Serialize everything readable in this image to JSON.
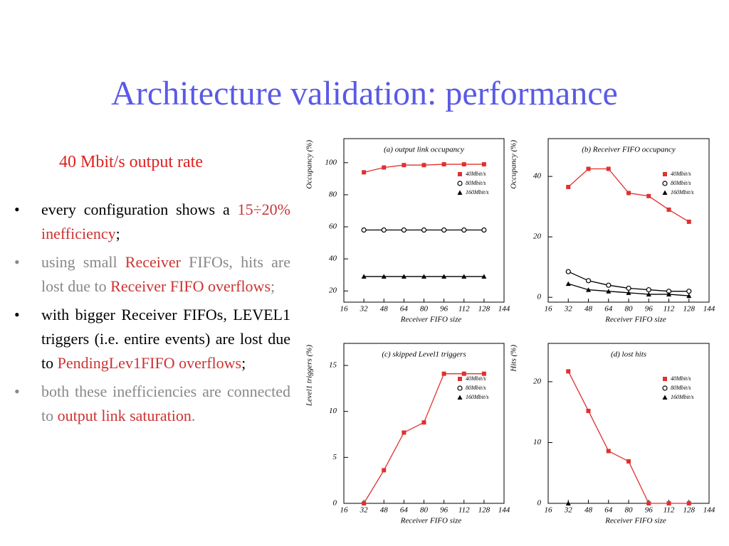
{
  "title": "Architecture validation: performance",
  "subtitle": "40 Mbit/s output rate",
  "highlight_color": "#cc3333",
  "bullets": [
    {
      "color": "#000000",
      "segments": [
        {
          "text": "every configuration shows a "
        },
        {
          "text": "15÷20% inefficiency",
          "highlight": true
        },
        {
          "text": ";"
        }
      ]
    },
    {
      "color": "#888888",
      "segments": [
        {
          "text": "using small "
        },
        {
          "text": "Receiver",
          "highlight": true
        },
        {
          "text": " FIFOs, hits are lost due to "
        },
        {
          "text": "Receiver FIFO overflows",
          "highlight": true
        },
        {
          "text": ";"
        }
      ]
    },
    {
      "color": "#000000",
      "segments": [
        {
          "text": "with bigger Receiver FIFOs, LEVEL1 triggers (i.e. entire events) are lost due to "
        },
        {
          "text": "PendingLev1FIFO overflows",
          "highlight": true
        },
        {
          "text": ";"
        }
      ]
    },
    {
      "color": "#888888",
      "segments": [
        {
          "text": "both these inefficiencies are connected to "
        },
        {
          "text": "output link saturation",
          "highlight": true
        },
        {
          "text": "."
        }
      ]
    }
  ],
  "chart_data": [
    {
      "type": "line",
      "title": "(a) output link occupancy",
      "x_label": "Receiver FIFO size",
      "y_label": "Occupancy (%)",
      "x": [
        32,
        48,
        64,
        80,
        96,
        112,
        128
      ],
      "xlim": [
        16,
        144
      ],
      "xticks": [
        16,
        32,
        48,
        64,
        80,
        96,
        112,
        128,
        144
      ],
      "ylim": [
        13,
        115
      ],
      "yticks": [
        20,
        40,
        60,
        80,
        100
      ],
      "legend": "upper right",
      "series": [
        {
          "name": "40Mbit/s",
          "color": "#e03030",
          "marker": "square",
          "values": [
            94,
            97,
            98.5,
            98.5,
            99,
            99,
            99
          ]
        },
        {
          "name": "80Mbit/s",
          "color": "#000000",
          "marker": "circle",
          "values": [
            58,
            58,
            58,
            58,
            58,
            58,
            58
          ]
        },
        {
          "name": "160Mbit/s",
          "color": "#000000",
          "marker": "triangle",
          "values": [
            29,
            29,
            29,
            29,
            29,
            29,
            29
          ]
        }
      ]
    },
    {
      "type": "line",
      "title": "(b) Receiver FIFO occupancy",
      "x_label": "Receiver FIFO size",
      "y_label": "Occupancy (%)",
      "x": [
        32,
        48,
        64,
        80,
        96,
        112,
        128
      ],
      "xlim": [
        16,
        144
      ],
      "xticks": [
        16,
        32,
        48,
        64,
        80,
        96,
        112,
        128,
        144
      ],
      "ylim": [
        -1.6,
        52.5
      ],
      "yticks": [
        0,
        20,
        40
      ],
      "legend": "upper right",
      "series": [
        {
          "name": "40Mbit/s",
          "color": "#e03030",
          "marker": "square",
          "values": [
            36.5,
            42.5,
            42.5,
            34.5,
            33.5,
            29,
            25
          ]
        },
        {
          "name": "80Mbit/s",
          "color": "#000000",
          "marker": "circle",
          "values": [
            8.5,
            5.5,
            4,
            3,
            2.5,
            2,
            2
          ]
        },
        {
          "name": "160Mbit/s",
          "color": "#000000",
          "marker": "triangle",
          "values": [
            4.5,
            2.5,
            2,
            1.5,
            1,
            1,
            0.5
          ]
        }
      ]
    },
    {
      "type": "line",
      "title": "(c) skipped Level1 triggers",
      "x_label": "Receiver FIFO size",
      "y_label": "Level1 triggers (%)",
      "x": [
        32,
        48,
        64,
        80,
        96,
        112,
        128
      ],
      "xlim": [
        16,
        144
      ],
      "xticks": [
        16,
        32,
        48,
        64,
        80,
        96,
        112,
        128,
        144
      ],
      "ylim": [
        0,
        17.4
      ],
      "yticks": [
        0,
        5,
        10,
        15
      ],
      "legend": "upper right",
      "series": [
        {
          "name": "40Mbit/s",
          "color": "#e03030",
          "marker": "square",
          "values": [
            0,
            3.6,
            7.7,
            8.8,
            14.1,
            14.1,
            14.1
          ]
        },
        {
          "name": "80Mbit/s",
          "color": "#000000",
          "marker": "circle",
          "values": [
            null,
            null,
            null,
            null,
            null,
            null,
            null
          ]
        },
        {
          "name": "160Mbit/s",
          "color": "#000000",
          "marker": "triangle",
          "values": [
            null,
            null,
            null,
            null,
            null,
            null,
            null
          ]
        }
      ]
    },
    {
      "type": "line",
      "title": "(d) lost hits",
      "x_label": "Receiver FIFO size",
      "y_label": "Hits (%)",
      "x": [
        32,
        48,
        64,
        80,
        96,
        112,
        128
      ],
      "xlim": [
        16,
        144
      ],
      "xticks": [
        16,
        32,
        48,
        64,
        80,
        96,
        112,
        128,
        144
      ],
      "ylim": [
        0,
        26.3
      ],
      "yticks": [
        0,
        10,
        20
      ],
      "legend": "upper right",
      "series": [
        {
          "name": "40Mbit/s",
          "color": "#e03030",
          "marker": "square",
          "values": [
            21.7,
            15.2,
            8.6,
            6.9,
            0,
            0,
            0
          ]
        },
        {
          "name": "80Mbit/s",
          "color": "#000000",
          "marker": "circle",
          "values": [
            null,
            null,
            null,
            null,
            null,
            null,
            null
          ]
        },
        {
          "name": "160Mbit/s",
          "color": "#000000",
          "marker": "triangle",
          "values": [
            0,
            null,
            null,
            null,
            null,
            null,
            null
          ]
        }
      ]
    }
  ]
}
